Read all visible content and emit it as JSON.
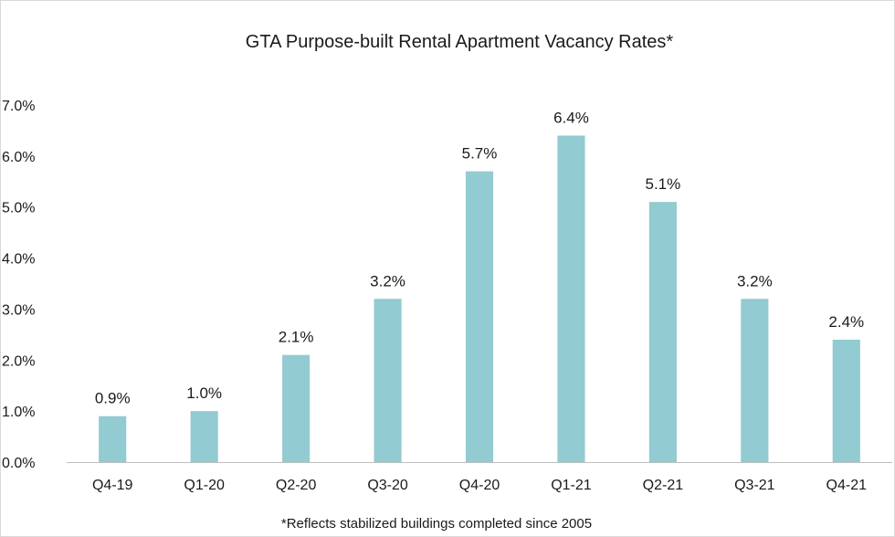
{
  "chart_data": {
    "type": "bar",
    "title": "GTA  Purpose-built Rental Apartment Vacancy Rates*",
    "footnote": "*Reflects stabilized buildings completed since 2005",
    "xlabel": "",
    "ylabel": "",
    "categories": [
      "Q4-19",
      "Q1-20",
      "Q2-20",
      "Q3-20",
      "Q4-20",
      "Q1-21",
      "Q2-21",
      "Q3-21",
      "Q4-21"
    ],
    "values": [
      0.9,
      1.0,
      2.1,
      3.2,
      5.7,
      6.4,
      5.1,
      3.2,
      2.4
    ],
    "data_labels": [
      "0.9%",
      "1.0%",
      "2.1%",
      "3.2%",
      "5.7%",
      "6.4%",
      "5.1%",
      "3.2%",
      "2.4%"
    ],
    "y_ticks": [
      0,
      1,
      2,
      3,
      4,
      5,
      6,
      7
    ],
    "y_tick_labels": [
      "0.0%",
      "1.0%",
      "2.0%",
      "3.0%",
      "4.0%",
      "5.0%",
      "6.0%",
      "7.0%"
    ],
    "ylim": [
      0,
      7
    ],
    "grid": false,
    "legend": "none",
    "bar_color": "#92cbd1",
    "axis_color": "#bfbfbf"
  }
}
